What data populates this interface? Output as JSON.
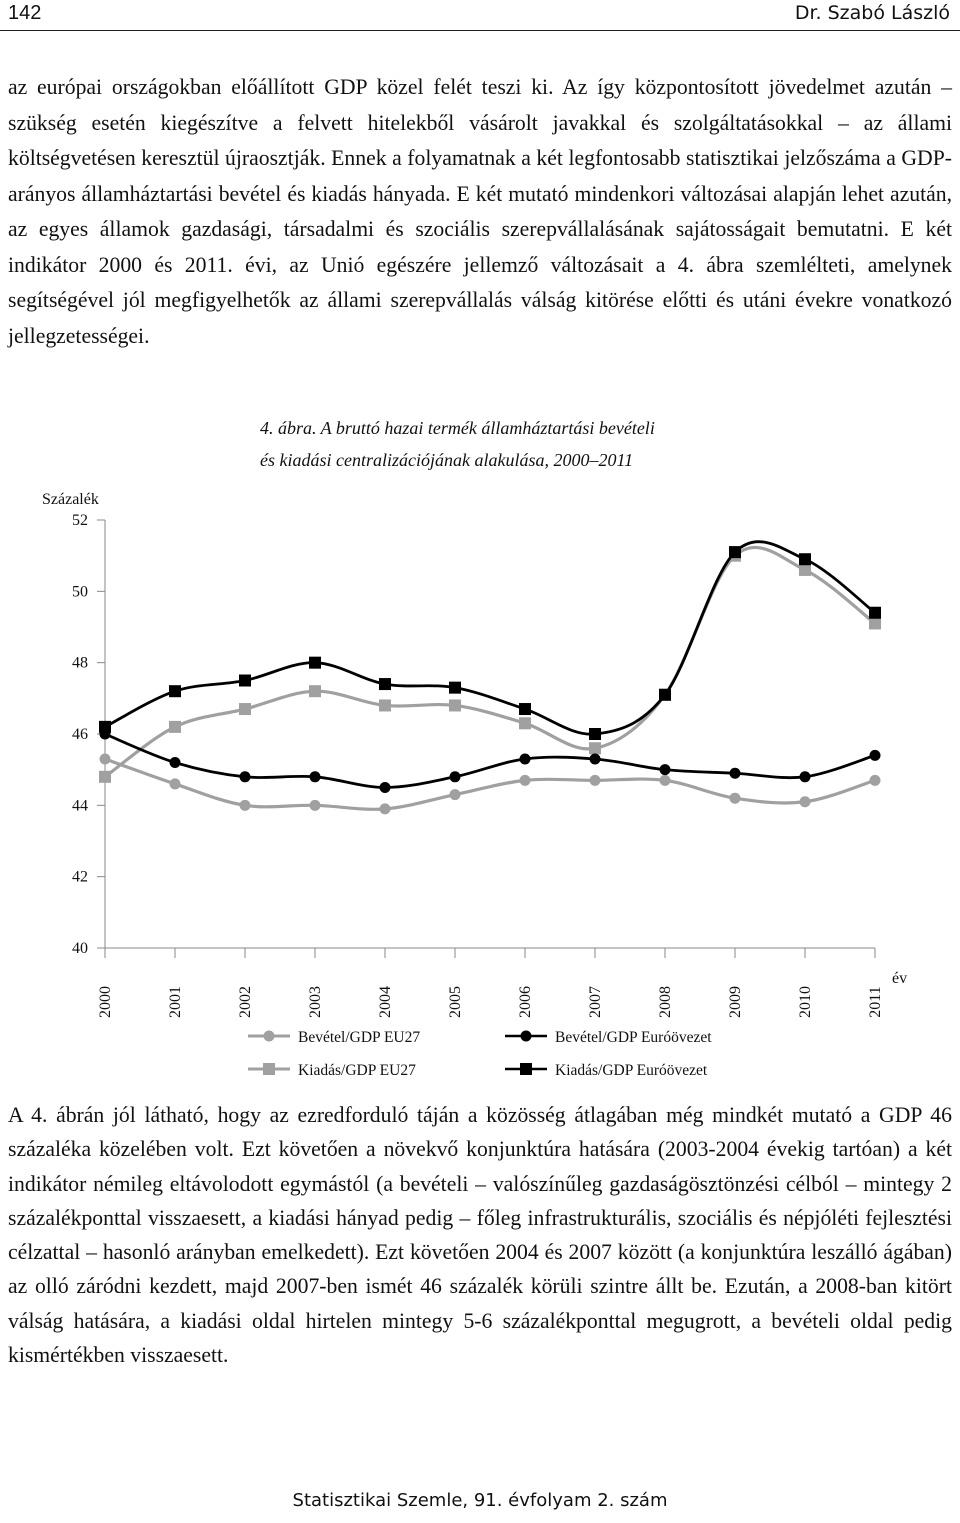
{
  "header": {
    "page_number": "142",
    "author": "Dr. Szabó László"
  },
  "paragraph_1": "az európai országokban előállított GDP közel felét teszi ki. Az így központosított jövedelmet azután – szükség esetén kiegészítve a felvett hitelekből vásárolt javakkal és szolgáltatásokkal – az állami költségvetésen keresztül újraosztják. Ennek a folyamatnak a két legfontosabb statisztikai jelzőszáma a GDP-arányos államháztartási bevétel és kiadás hányada. E két mutató mindenkori változásai alapján lehet azután, az egyes államok gazdasági, társadalmi és szociális szerepvállalásának sajátosságait bemutatni. E két indikátor 2000 és 2011. évi, az Unió egészére jellemző változásait a 4. ábra szemlélteti, amelynek segítségével jól megfigyelhetők az állami szerepvállalás válság kitörése előtti és utáni évekre vonatkozó jellegzetességei.",
  "figure": {
    "caption_line1": "4. ábra. A bruttó hazai termék államháztartási bevételi",
    "caption_line2": "és kiadási centralizációjának alakulása, 2000–2011"
  },
  "chart_data": {
    "type": "line",
    "title": "4. ábra. A bruttó hazai termék államháztartási bevételi és kiadási centralizációjának alakulása, 2000–2011",
    "ylabel": "Százalék",
    "xlabel": "év",
    "ylim": [
      40,
      52
    ],
    "yticks": [
      "52",
      "50",
      "48",
      "46",
      "44",
      "42",
      "40"
    ],
    "categories": [
      "2000",
      "2001",
      "2002",
      "2003",
      "2004",
      "2005",
      "2006",
      "2007",
      "2008",
      "2009",
      "2010",
      "2011"
    ],
    "legend_position": "bottom",
    "series": [
      {
        "name": "Bevétel/GDP EU27",
        "color": "#a0a0a0",
        "marker": "circle",
        "values": [
          45.3,
          44.6,
          44.0,
          44.0,
          43.9,
          44.3,
          44.7,
          44.7,
          44.7,
          44.2,
          44.1,
          44.7
        ]
      },
      {
        "name": "Kiadás/GDP EU27",
        "color": "#a0a0a0",
        "marker": "square",
        "values": [
          44.8,
          46.2,
          46.7,
          47.2,
          46.8,
          46.8,
          46.3,
          45.6,
          47.1,
          51.0,
          50.6,
          49.1
        ]
      },
      {
        "name": "Bevétel/GDP Euróövezet",
        "color": "#000000",
        "marker": "circle",
        "values": [
          46.0,
          45.2,
          44.8,
          44.8,
          44.5,
          44.8,
          45.3,
          45.3,
          45.0,
          44.9,
          44.8,
          45.4
        ]
      },
      {
        "name": "Kiadás/GDP Euróövezet",
        "color": "#000000",
        "marker": "square",
        "values": [
          46.2,
          47.2,
          47.5,
          48.0,
          47.4,
          47.3,
          46.7,
          46.0,
          47.1,
          51.1,
          50.9,
          49.4
        ]
      }
    ]
  },
  "paragraph_2": "A 4. ábrán jól látható, hogy az ezredforduló táján a közösség átlagában még mindkét mutató a GDP 46 százaléka közelében volt. Ezt követően a növekvő konjunktúra hatására (2003-2004 évekig tartóan) a két indikátor némileg eltávolodott egymástól (a bevételi – valószínűleg gazdaságösztönzési célból – mintegy 2 százalékponttal visszaesett, a kiadási hányad pedig – főleg infrastrukturális, szociális és népjóléti fejlesztési célzattal – hasonló arányban emelkedett). Ezt követően 2004 és 2007 között (a konjunktúra leszálló ágában) az olló záródni kezdett, majd 2007-ben ismét 46 százalék körüli szintre állt be. Ezután, a 2008-ban kitört válság hatására, a kiadási oldal hirtelen mintegy 5-6 százalékponttal megugrott, a bevételi oldal pedig kismértékben visszaesett.",
  "footer": "Statisztikai Szemle, 91. évfolyam 2. szám"
}
